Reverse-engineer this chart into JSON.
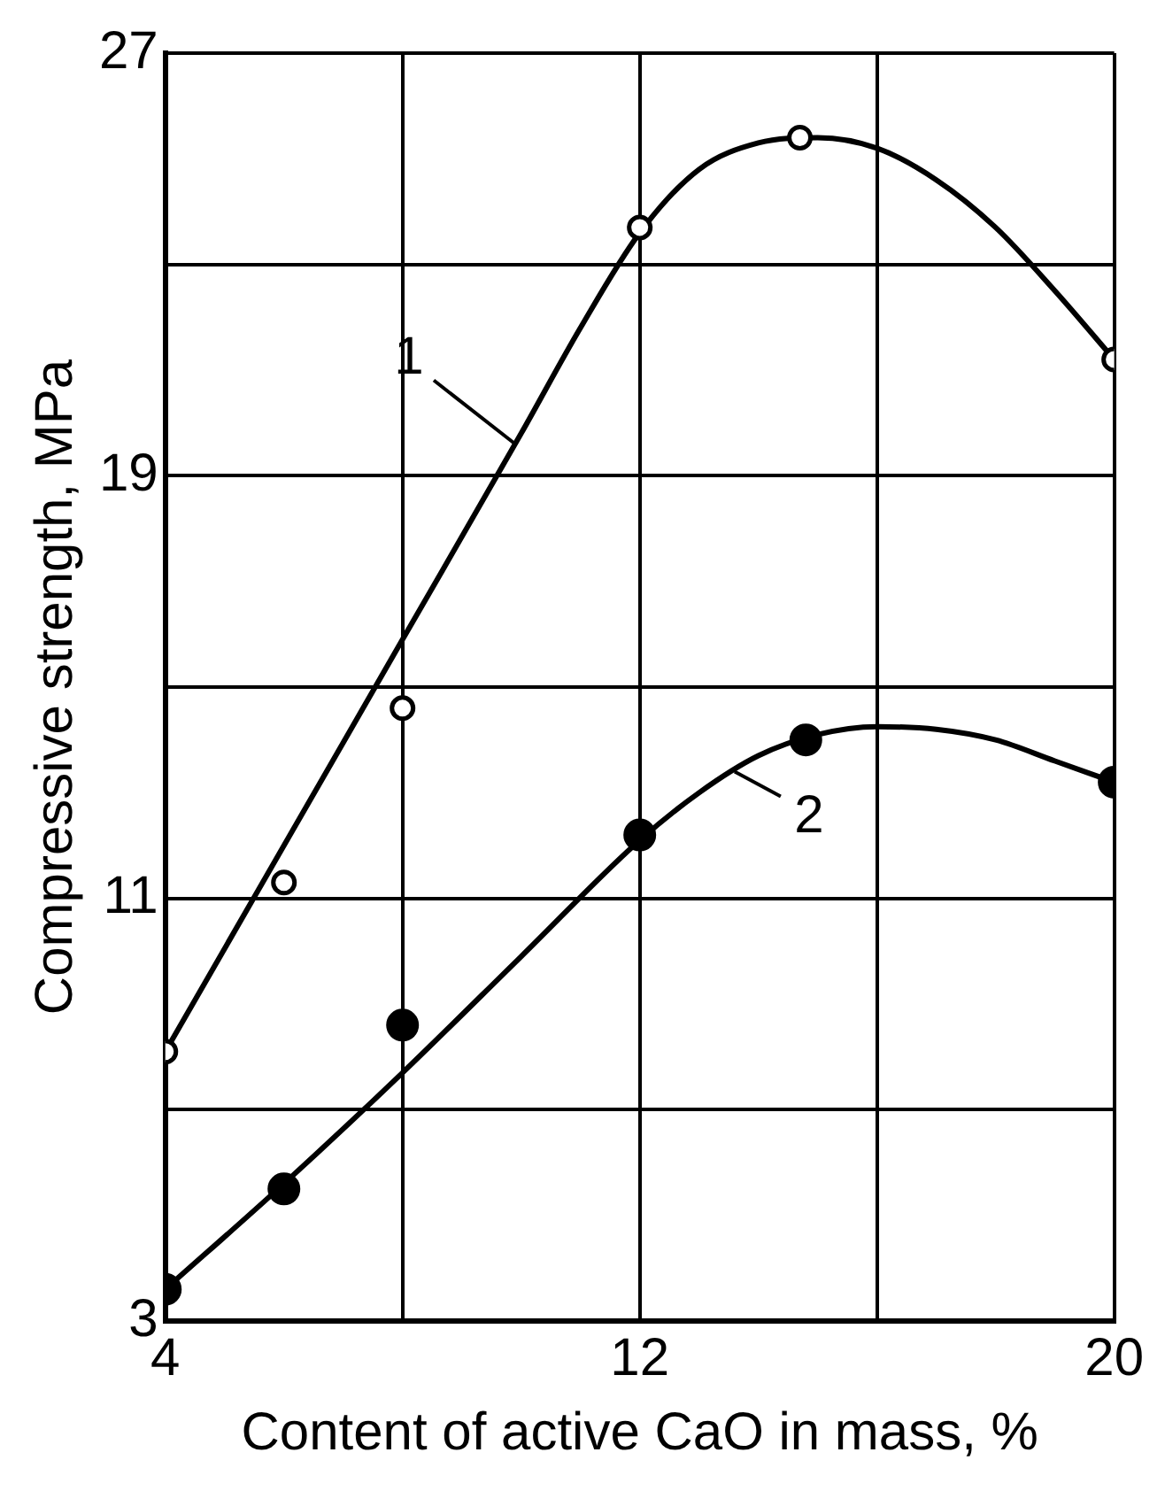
{
  "chart_data": {
    "type": "scatter",
    "xlabel": "Content of active CaO in mass, %",
    "ylabel": "Compressive strength, MPa",
    "xlim": [
      4,
      20
    ],
    "xticks": [
      4,
      {
        "value": 8,
        "label": null
      },
      12,
      {
        "value": 16,
        "label": null
      },
      20
    ],
    "ylim": [
      3,
      27
    ],
    "yticks": [
      3,
      {
        "value": 7,
        "label": null
      },
      11,
      {
        "value": 15,
        "label": null
      },
      19,
      {
        "value": 23,
        "label": null
      },
      27
    ],
    "grid": true,
    "legend": false,
    "marker": "circle",
    "series": [
      {
        "color": "#000000",
        "x": [
          4,
          6,
          8,
          12,
          14.7,
          20
        ],
        "values": [
          8.1,
          11.3,
          14.6,
          23.7,
          25.4,
          21.2
        ]
      },
      {
        "color": "#000000",
        "x": [
          4,
          6,
          8,
          12,
          14.8,
          20
        ],
        "values": [
          3.6,
          5.5,
          8.6,
          12.2,
          14.0,
          13.2
        ]
      },
      {
        "type": "line",
        "color": "#000000",
        "marker": "none",
        "x": [
          4,
          6,
          8,
          10,
          11,
          12,
          13,
          14,
          15,
          16,
          17,
          18,
          19,
          20
        ],
        "values": [
          8.1,
          12.0,
          15.9,
          19.8,
          21.8,
          23.6,
          24.8,
          25.3,
          25.4,
          25.2,
          24.6,
          23.7,
          22.5,
          21.2
        ]
      },
      {
        "type": "line",
        "color": "#000000",
        "marker": "none",
        "x": [
          4,
          6,
          8,
          10,
          12,
          13,
          14,
          15,
          16,
          17,
          18,
          19,
          20
        ],
        "values": [
          3.6,
          5.6,
          7.7,
          9.9,
          12.1,
          13.0,
          13.7,
          14.1,
          14.25,
          14.2,
          14.0,
          13.6,
          13.2
        ]
      }
    ],
    "annotations": [
      {
        "text": "1",
        "x": 9.9,
        "y": 19.6
      },
      {
        "text": "2",
        "x": 13.6,
        "y": 13.4
      }
    ]
  }
}
